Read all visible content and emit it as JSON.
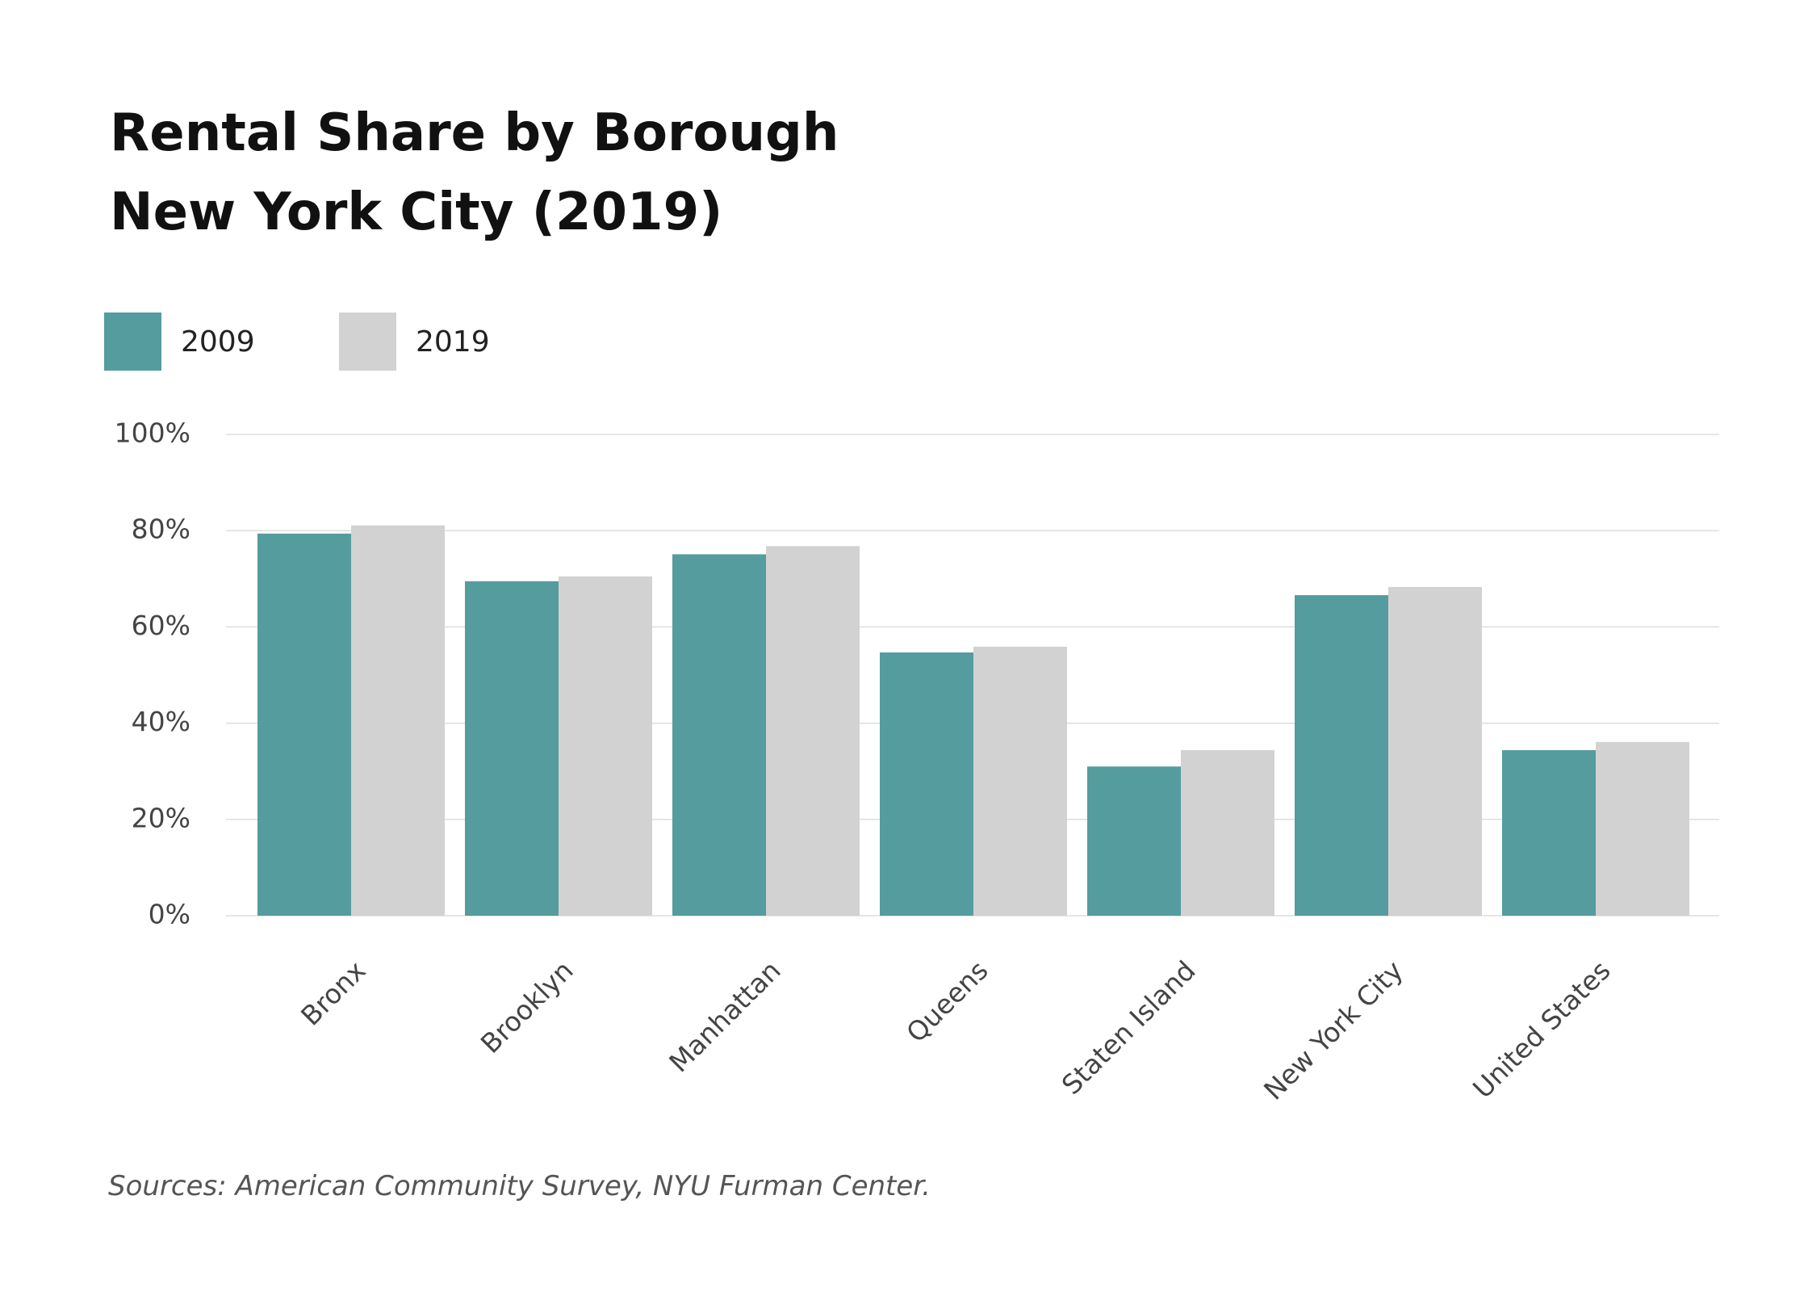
{
  "chart_data": {
    "type": "bar",
    "title": "Rental Share by Borough",
    "subtitle": "New York City (2019)",
    "categories": [
      "Bronx",
      "Brooklyn",
      "Manhattan",
      "Queens",
      "Staten Island",
      "New York City",
      "United States"
    ],
    "series": [
      {
        "name": "2009",
        "color": "#559c9e",
        "values": [
          79.4,
          69.5,
          75.1,
          54.7,
          31.0,
          66.6,
          34.4
        ]
      },
      {
        "name": "2019",
        "color": "#d2d2d2",
        "values": [
          81.1,
          70.5,
          76.8,
          55.9,
          34.4,
          68.3,
          36.1
        ]
      }
    ],
    "ylim": [
      0,
      100
    ],
    "yticks": [
      {
        "value": 0,
        "label": "0%"
      },
      {
        "value": 20,
        "label": "20%"
      },
      {
        "value": 40,
        "label": "40%"
      },
      {
        "value": 60,
        "label": "60%"
      },
      {
        "value": 80,
        "label": "80%"
      },
      {
        "value": 100,
        "label": "100%"
      }
    ],
    "grid": true,
    "source": "Sources: American Community Survey, NYU Furman Center."
  }
}
